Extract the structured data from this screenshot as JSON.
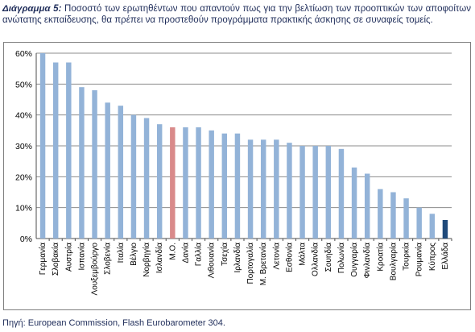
{
  "caption": {
    "label": "Διάγραμμα 5:",
    "text": " Ποσοστό των ερωτηθέντων που απαντούν πως για την βελτίωση των προοπτικών των αποφοίτων ανώτατης εκπαίδευσης, θα πρέπει να προστεθούν προγράμματα πρακτικής άσκησης σε συναφείς τομείς."
  },
  "source": "Πηγή: European Commission, Flash Eurobarometer 304.",
  "chart_data": {
    "type": "bar",
    "title": "",
    "xlabel": "",
    "ylabel": "",
    "ylim": [
      0,
      60
    ],
    "yticks": [
      "0%",
      "10%",
      "20%",
      "30%",
      "40%",
      "50%",
      "60%"
    ],
    "grid": true,
    "legend": "none",
    "categories": [
      "Γερμανία",
      "Σλοβακία",
      "Αυστρία",
      "Ισπανία",
      "Λουξεμβούργο",
      "Σλοβενία",
      "Ιταλία",
      "Βέλγιο",
      "Νορβηγία",
      "Ισλανδία",
      "Μ.Ο.",
      "Δανία",
      "Γαλλία",
      "Λιθουανία",
      "Τσεχία",
      "Ιρλανδία",
      "Πορτογαλία",
      "Μ. Βρετανία",
      "Λετονία",
      "Εσθονία",
      "Μάλτα",
      "Ολλανδία",
      "Σουηδία",
      "Πολωνία",
      "Ουγγαρία",
      "Φινλανδία",
      "Κροατία",
      "Βουλγαρία",
      "Τουρκία",
      "Ρουμανία",
      "Κύπρος",
      "Ελλάδα"
    ],
    "values": [
      60,
      57,
      57,
      49,
      48,
      44,
      43,
      40,
      39,
      37,
      36,
      36,
      36,
      35,
      34,
      34,
      32,
      32,
      32,
      31,
      30,
      30,
      30,
      29,
      23,
      21,
      16,
      15,
      13,
      10,
      8,
      6
    ],
    "colors": {
      "default": "#93b3d8",
      "average": "#d98a8a",
      "greece": "#1f4a7a",
      "grid": "#8c8c8c",
      "axis": "#4d4d4d"
    },
    "highlight": {
      "Μ.Ο.": "average",
      "Ελλάδα": "greece"
    }
  }
}
